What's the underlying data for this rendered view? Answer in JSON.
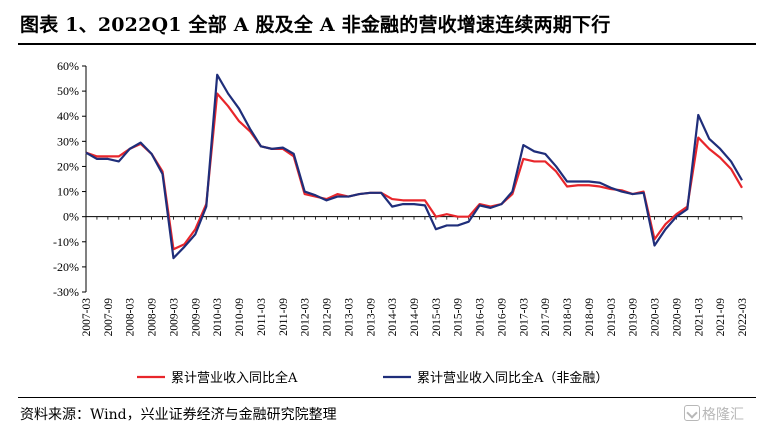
{
  "title": "图表 1、2022Q1 全部 A 股及全 A 非金融的营收增速连续两期下行",
  "source": "资料来源：Wind，兴业证券经济与金融研究院整理",
  "watermark": "格隆汇",
  "chart_data": {
    "type": "line",
    "ylim": [
      -30,
      60
    ],
    "yticks": [
      -30,
      -20,
      -10,
      0,
      10,
      20,
      30,
      40,
      50,
      60
    ],
    "ytick_labels": [
      "-30%",
      "-20%",
      "-10%",
      "0%",
      "10%",
      "20%",
      "30%",
      "40%",
      "50%",
      "60%"
    ],
    "x": [
      "2007-03",
      "2007-06",
      "2007-09",
      "2007-12",
      "2008-03",
      "2008-06",
      "2008-09",
      "2008-12",
      "2009-03",
      "2009-06",
      "2009-09",
      "2009-12",
      "2010-03",
      "2010-06",
      "2010-09",
      "2010-12",
      "2011-03",
      "2011-06",
      "2011-09",
      "2011-12",
      "2012-03",
      "2012-06",
      "2012-09",
      "2012-12",
      "2013-03",
      "2013-06",
      "2013-09",
      "2013-12",
      "2014-03",
      "2014-06",
      "2014-09",
      "2014-12",
      "2015-03",
      "2015-06",
      "2015-09",
      "2015-12",
      "2016-03",
      "2016-06",
      "2016-09",
      "2016-12",
      "2017-03",
      "2017-06",
      "2017-09",
      "2017-12",
      "2018-03",
      "2018-06",
      "2018-09",
      "2018-12",
      "2019-03",
      "2019-06",
      "2019-09",
      "2019-12",
      "2020-03",
      "2020-06",
      "2020-09",
      "2020-12",
      "2021-03",
      "2021-06",
      "2021-09",
      "2021-12",
      "2022-03"
    ],
    "xtick_labels": [
      "2007-03",
      "2007-09",
      "2008-03",
      "2008-09",
      "2009-03",
      "2009-09",
      "2010-03",
      "2010-09",
      "2011-03",
      "2011-09",
      "2012-03",
      "2012-09",
      "2013-03",
      "2013-09",
      "2014-03",
      "2014-09",
      "2015-03",
      "2015-09",
      "2016-03",
      "2016-09",
      "2017-03",
      "2017-09",
      "2018-03",
      "2018-09",
      "2019-03",
      "2019-09",
      "2020-03",
      "2020-09",
      "2021-03",
      "2021-09",
      "2022-03"
    ],
    "legend_position": "bottom",
    "series": [
      {
        "name": "累计营业收入同比全A",
        "color": "#e8262b",
        "values": [
          25.5,
          24,
          24,
          24,
          27,
          29,
          25,
          18,
          -13,
          -11,
          -5,
          5,
          49,
          44,
          38,
          34,
          28,
          27,
          27,
          24,
          9,
          8,
          7,
          9,
          8,
          9,
          9.5,
          9.5,
          7,
          6.5,
          6.5,
          6.5,
          0,
          1,
          0,
          0,
          5,
          4,
          5,
          9,
          23,
          22,
          22,
          18,
          12,
          12.5,
          12.5,
          12,
          11,
          10.5,
          9,
          10,
          -9,
          -3,
          1,
          4,
          31.5,
          27,
          23.5,
          19,
          11.5
        ]
      },
      {
        "name": "累计营业收入同比全A（非金融）",
        "color": "#1f2e7a",
        "values": [
          25.5,
          23,
          23,
          22,
          27,
          29.5,
          25,
          17,
          -16.5,
          -12,
          -7,
          4,
          56.5,
          49,
          43,
          35,
          28,
          27,
          27.5,
          25,
          10,
          8.5,
          6.5,
          8,
          8,
          9,
          9.5,
          9.5,
          4,
          5,
          5,
          4.5,
          -5,
          -3.5,
          -3.5,
          -2,
          4.5,
          3.5,
          5,
          10,
          28.5,
          26,
          25,
          20,
          14,
          14,
          14,
          13.5,
          11.5,
          10,
          9,
          9.5,
          -11.5,
          -5,
          0,
          3,
          40.5,
          31,
          27,
          22,
          14.5
        ]
      }
    ]
  }
}
